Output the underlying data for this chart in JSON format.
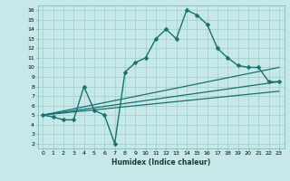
{
  "xlabel": "Humidex (Indice chaleur)",
  "ylabel": "",
  "bg_color": "#c6e8e8",
  "grid_color": "#a0cccc",
  "line_color": "#1a7070",
  "xlim": [
    -0.5,
    23.5
  ],
  "ylim": [
    1.5,
    16.5
  ],
  "xticks": [
    0,
    1,
    2,
    3,
    4,
    5,
    6,
    7,
    8,
    9,
    10,
    11,
    12,
    13,
    14,
    15,
    16,
    17,
    18,
    19,
    20,
    21,
    22,
    23
  ],
  "yticks": [
    2,
    3,
    4,
    5,
    6,
    7,
    8,
    9,
    10,
    11,
    12,
    13,
    14,
    15,
    16
  ],
  "series": [
    {
      "x": [
        0,
        1,
        2,
        3,
        4,
        5,
        6,
        7,
        8,
        9,
        10,
        11,
        12,
        13,
        14,
        15,
        16,
        17,
        18,
        19,
        20,
        21,
        22,
        23
      ],
      "y": [
        5.0,
        4.8,
        4.5,
        4.5,
        8.0,
        5.5,
        5.0,
        2.0,
        9.5,
        10.5,
        11.0,
        13.0,
        14.0,
        13.0,
        16.0,
        15.5,
        14.5,
        12.0,
        11.0,
        10.2,
        10.0,
        10.0,
        8.5,
        8.5
      ],
      "marker": "D",
      "markersize": 2.5,
      "linewidth": 1.0
    },
    {
      "x": [
        0,
        23
      ],
      "y": [
        5.0,
        10.0
      ],
      "marker": null,
      "markersize": 0,
      "linewidth": 0.9
    },
    {
      "x": [
        0,
        23
      ],
      "y": [
        5.0,
        8.5
      ],
      "marker": null,
      "markersize": 0,
      "linewidth": 0.9
    },
    {
      "x": [
        0,
        23
      ],
      "y": [
        5.0,
        7.5
      ],
      "marker": null,
      "markersize": 0,
      "linewidth": 0.9
    }
  ]
}
